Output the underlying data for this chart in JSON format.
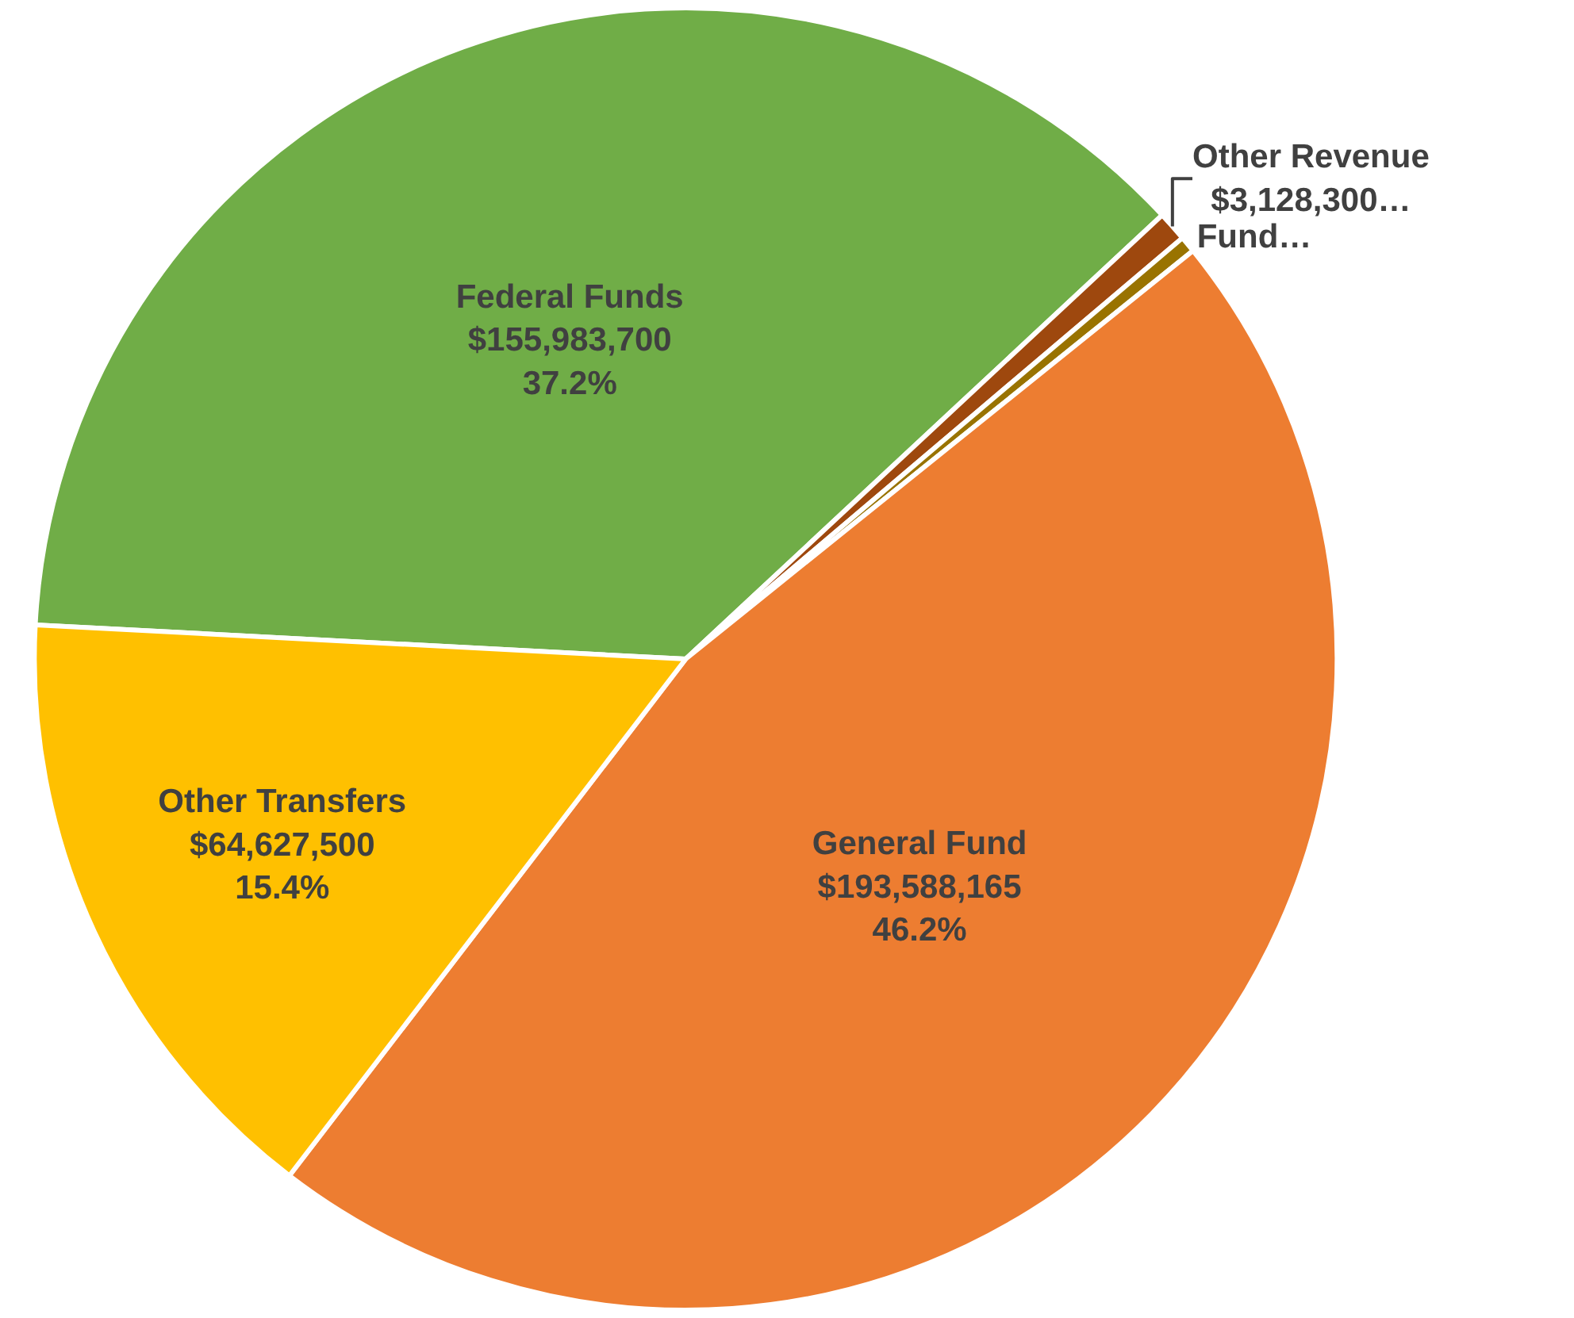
{
  "chart_data": {
    "type": "pie",
    "categories": [
      "Federal Funds",
      "Other Revenue",
      "Fund…",
      "General Fund",
      "Other Transfers"
    ],
    "values": [
      155983700,
      3128300,
      1700000,
      193588165,
      64627500
    ],
    "colors": [
      "#70ad47",
      "#9e480e",
      "#997300",
      "#ed7d31",
      "#ffc000"
    ],
    "value_labels": [
      "$155,983,700\n37.2%",
      "$3,128,300…",
      null,
      "$193,588,165\n46.2%",
      "$64,627,500\n15.4%"
    ]
  }
}
